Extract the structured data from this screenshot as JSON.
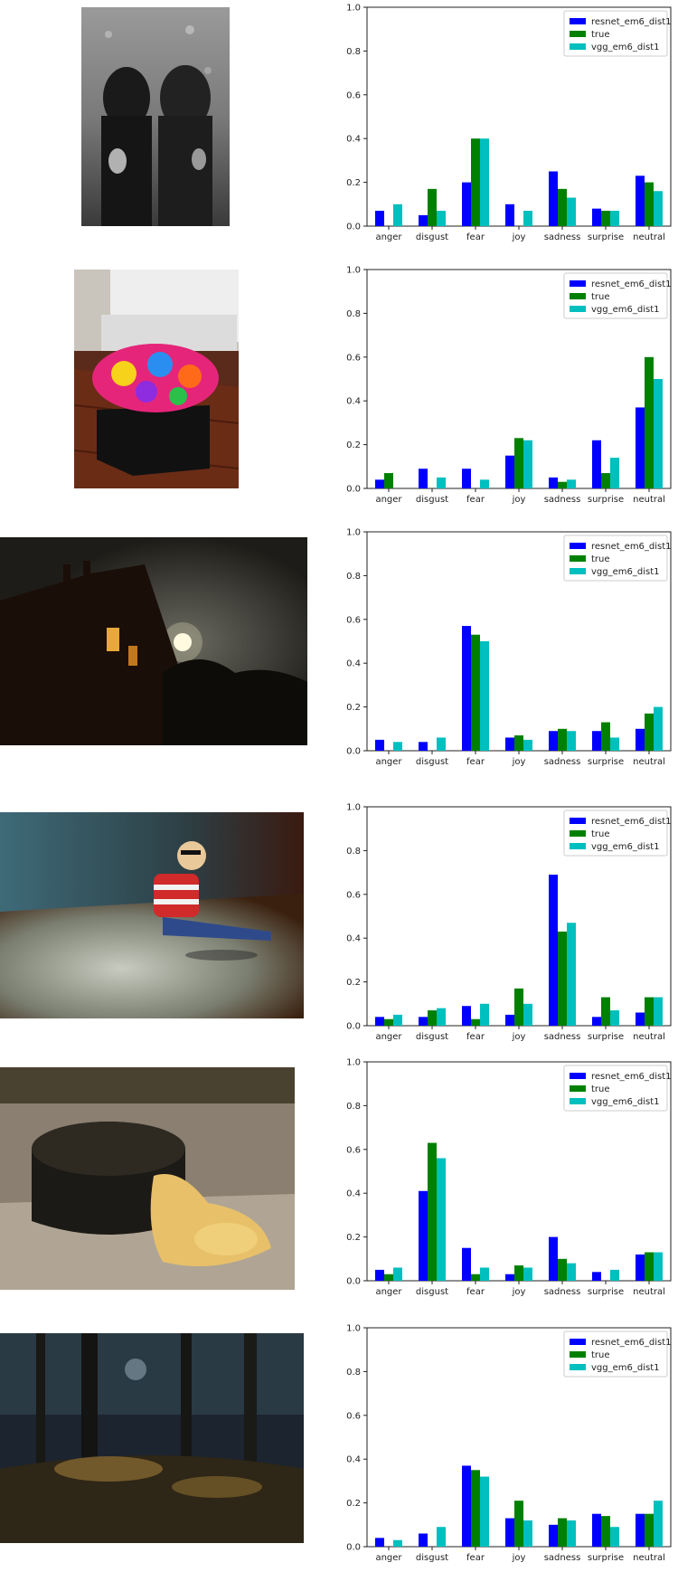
{
  "colors": {
    "resnet_em6_dist1": "#0000ff",
    "true": "#008000",
    "vgg_em6_dist1": "#00bfbf"
  },
  "rows": [
    {
      "photo": {
        "subject": "two girls in dark dresses, black and white photo",
        "icon": "photo-two-girls"
      },
      "chart_data": {
        "type": "bar",
        "title": "",
        "xlabel": "",
        "ylabel": "",
        "ylim": [
          0,
          1.0
        ],
        "yticks": [
          "0.0",
          "0.2",
          "0.4",
          "0.6",
          "0.8",
          "1.0"
        ],
        "categories": [
          "anger",
          "disgust",
          "fear",
          "joy",
          "sadness",
          "surprise",
          "neutral"
        ],
        "legend_position": "top-right",
        "series": [
          {
            "name": "resnet_em6_dist1",
            "color": "#0000ff",
            "values": [
              0.07,
              0.05,
              0.2,
              0.1,
              0.25,
              0.08,
              0.23
            ]
          },
          {
            "name": "true",
            "color": "#008000",
            "values": [
              0.0,
              0.17,
              0.4,
              0.0,
              0.17,
              0.07,
              0.2
            ]
          },
          {
            "name": "vgg_em6_dist1",
            "color": "#00bfbf",
            "values": [
              0.1,
              0.07,
              0.4,
              0.07,
              0.13,
              0.07,
              0.16
            ]
          }
        ]
      }
    },
    {
      "photo": {
        "subject": "crocheted colorful pouf on wooden floor",
        "icon": "photo-pouf"
      },
      "chart_data": {
        "type": "bar",
        "title": "",
        "xlabel": "",
        "ylabel": "",
        "ylim": [
          0,
          1.0
        ],
        "yticks": [
          "0.0",
          "0.2",
          "0.4",
          "0.6",
          "0.8",
          "1.0"
        ],
        "categories": [
          "anger",
          "disgust",
          "fear",
          "joy",
          "sadness",
          "surprise",
          "neutral"
        ],
        "legend_position": "top-right",
        "series": [
          {
            "name": "resnet_em6_dist1",
            "color": "#0000ff",
            "values": [
              0.04,
              0.09,
              0.09,
              0.15,
              0.05,
              0.22,
              0.37
            ]
          },
          {
            "name": "true",
            "color": "#008000",
            "values": [
              0.07,
              0.0,
              0.0,
              0.23,
              0.03,
              0.07,
              0.6
            ]
          },
          {
            "name": "vgg_em6_dist1",
            "color": "#00bfbf",
            "values": [
              0.0,
              0.05,
              0.04,
              0.22,
              0.04,
              0.14,
              0.5
            ]
          }
        ]
      }
    },
    {
      "photo": {
        "subject": "dark house at night with full moon",
        "icon": "photo-night-house"
      },
      "chart_data": {
        "type": "bar",
        "title": "",
        "xlabel": "",
        "ylabel": "",
        "ylim": [
          0,
          1.0
        ],
        "yticks": [
          "0.0",
          "0.2",
          "0.4",
          "0.6",
          "0.8",
          "1.0"
        ],
        "categories": [
          "anger",
          "disgust",
          "fear",
          "joy",
          "sadness",
          "surprise",
          "neutral"
        ],
        "legend_position": "top-right",
        "series": [
          {
            "name": "resnet_em6_dist1",
            "color": "#0000ff",
            "values": [
              0.05,
              0.04,
              0.57,
              0.06,
              0.09,
              0.09,
              0.1
            ]
          },
          {
            "name": "true",
            "color": "#008000",
            "values": [
              0.0,
              0.0,
              0.53,
              0.07,
              0.1,
              0.13,
              0.17
            ]
          },
          {
            "name": "vgg_em6_dist1",
            "color": "#00bfbf",
            "values": [
              0.04,
              0.06,
              0.5,
              0.05,
              0.09,
              0.06,
              0.2
            ]
          }
        ]
      }
    },
    {
      "photo": {
        "subject": "child in striped shirt sitting on carpet",
        "icon": "photo-child"
      },
      "chart_data": {
        "type": "bar",
        "title": "",
        "xlabel": "",
        "ylabel": "",
        "ylim": [
          0,
          1.0
        ],
        "yticks": [
          "0.0",
          "0.2",
          "0.4",
          "0.6",
          "0.8",
          "1.0"
        ],
        "categories": [
          "anger",
          "disgust",
          "fear",
          "joy",
          "sadness",
          "surprise",
          "neutral"
        ],
        "legend_position": "top-right",
        "series": [
          {
            "name": "resnet_em6_dist1",
            "color": "#0000ff",
            "values": [
              0.04,
              0.04,
              0.09,
              0.05,
              0.69,
              0.04,
              0.06
            ]
          },
          {
            "name": "true",
            "color": "#008000",
            "values": [
              0.03,
              0.07,
              0.03,
              0.17,
              0.43,
              0.13,
              0.13
            ]
          },
          {
            "name": "vgg_em6_dist1",
            "color": "#00bfbf",
            "values": [
              0.05,
              0.08,
              0.1,
              0.1,
              0.47,
              0.07,
              0.13
            ]
          }
        ]
      }
    },
    {
      "photo": {
        "subject": "dark stump with yellow fungus on ground",
        "icon": "photo-fungus"
      },
      "chart_data": {
        "type": "bar",
        "title": "",
        "xlabel": "",
        "ylabel": "",
        "ylim": [
          0,
          1.0
        ],
        "yticks": [
          "0.0",
          "0.2",
          "0.4",
          "0.6",
          "0.8",
          "1.0"
        ],
        "categories": [
          "anger",
          "disgust",
          "fear",
          "joy",
          "sadness",
          "surprise",
          "neutral"
        ],
        "legend_position": "top-right",
        "series": [
          {
            "name": "resnet_em6_dist1",
            "color": "#0000ff",
            "values": [
              0.05,
              0.41,
              0.15,
              0.03,
              0.2,
              0.04,
              0.12
            ]
          },
          {
            "name": "true",
            "color": "#008000",
            "values": [
              0.03,
              0.63,
              0.03,
              0.07,
              0.1,
              0.0,
              0.13
            ]
          },
          {
            "name": "vgg_em6_dist1",
            "color": "#00bfbf",
            "values": [
              0.06,
              0.56,
              0.06,
              0.06,
              0.08,
              0.05,
              0.13
            ]
          }
        ]
      }
    },
    {
      "photo": {
        "subject": "dark forest with sunlight",
        "icon": "photo-forest"
      },
      "chart_data": {
        "type": "bar",
        "title": "",
        "xlabel": "",
        "ylabel": "",
        "ylim": [
          0,
          1.0
        ],
        "yticks": [
          "0.0",
          "0.2",
          "0.4",
          "0.6",
          "0.8",
          "1.0"
        ],
        "categories": [
          "anger",
          "disgust",
          "fear",
          "joy",
          "sadness",
          "surprise",
          "neutral"
        ],
        "legend_position": "top-right",
        "series": [
          {
            "name": "resnet_em6_dist1",
            "color": "#0000ff",
            "values": [
              0.04,
              0.06,
              0.37,
              0.13,
              0.1,
              0.15,
              0.15
            ]
          },
          {
            "name": "true",
            "color": "#008000",
            "values": [
              0.0,
              0.0,
              0.35,
              0.21,
              0.13,
              0.14,
              0.15
            ]
          },
          {
            "name": "vgg_em6_dist1",
            "color": "#00bfbf",
            "values": [
              0.03,
              0.09,
              0.32,
              0.12,
              0.12,
              0.09,
              0.21
            ]
          }
        ]
      }
    }
  ]
}
